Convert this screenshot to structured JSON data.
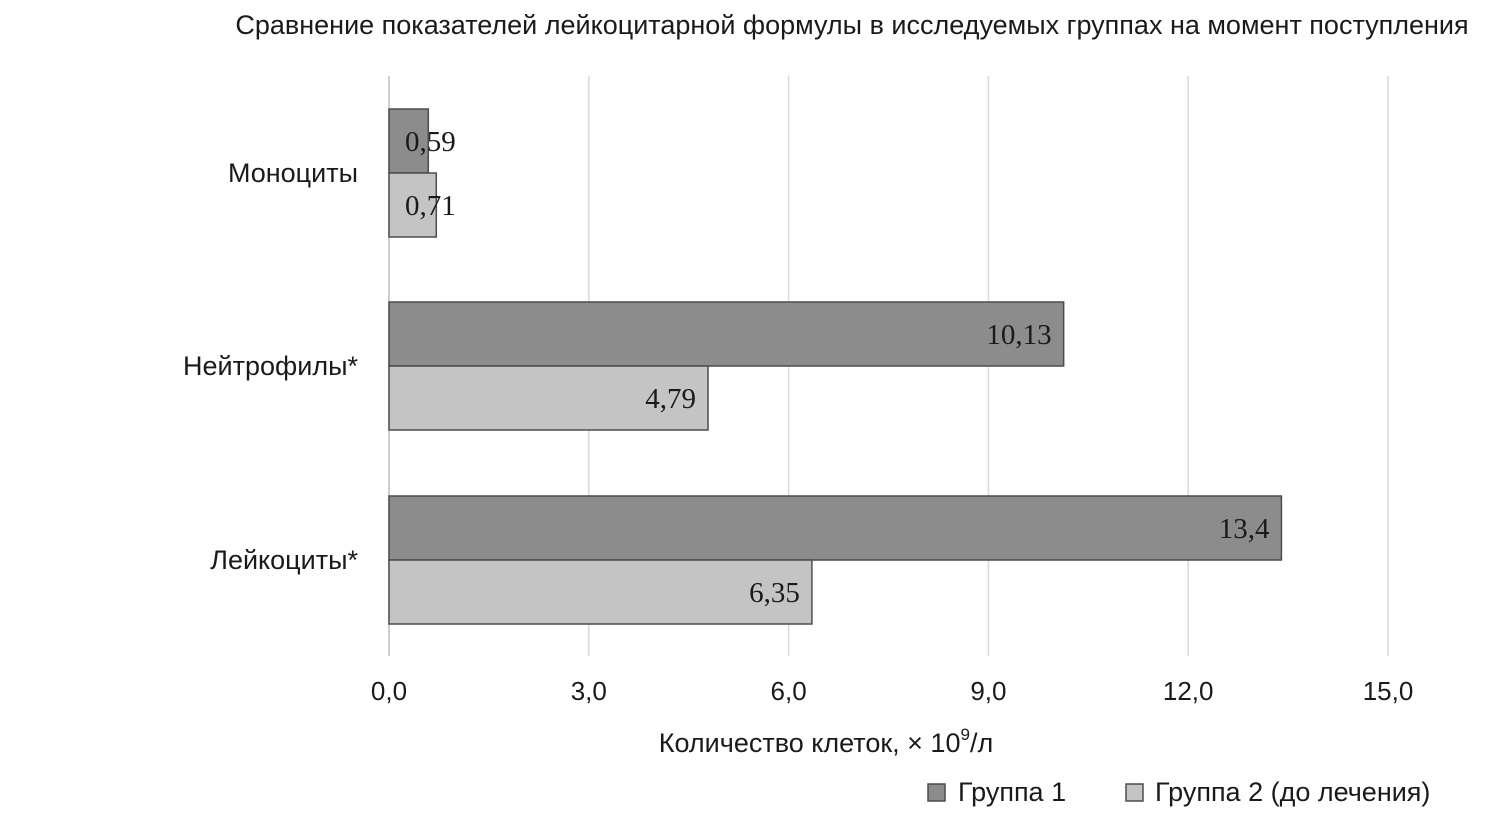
{
  "chart_data": {
    "type": "bar",
    "orientation": "horizontal",
    "title": "Сравнение показателей лейкоцитарной формулы в исследуемых группах на момент поступления",
    "xlabel_prefix": "Количество клеток, × 10",
    "xlabel_sup": "9",
    "xlabel_suffix": "/л",
    "categories": [
      "Моноциты",
      "Нейтрофилы*",
      "Лейкоциты*"
    ],
    "series": [
      {
        "name": "Группа 1",
        "values": [
          0.59,
          10.13,
          13.4
        ],
        "labels": [
          "0,59",
          "10,13",
          "13,4"
        ],
        "color": "#8c8c8c"
      },
      {
        "name": "Группа 2 (до лечения)",
        "values": [
          0.71,
          4.79,
          6.35
        ],
        "labels": [
          "0,71",
          "4,79",
          "6,35"
        ],
        "color": "#c4c4c4"
      }
    ],
    "xlim": [
      0,
      15
    ],
    "xticks": [
      0,
      3,
      6,
      9,
      12,
      15
    ],
    "xtick_labels": [
      "0,0",
      "3,0",
      "6,0",
      "9,0",
      "12,0",
      "15,0"
    ],
    "grid": true,
    "legend_position": "bottom-right"
  }
}
